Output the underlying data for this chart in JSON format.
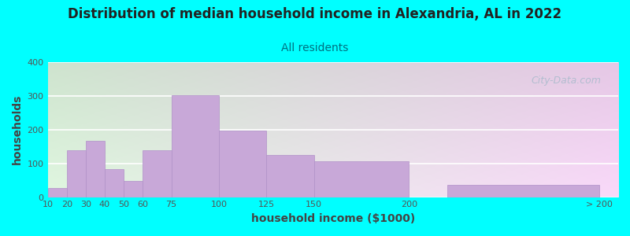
{
  "title": "Distribution of median household income in Alexandria, AL in 2022",
  "subtitle": "All residents",
  "xlabel": "household income ($1000)",
  "ylabel": "households",
  "background_color": "#00FFFF",
  "bar_color": "#c8a8d8",
  "bar_edge_color": "#b090c8",
  "values": [
    28,
    0,
    140,
    168,
    82,
    48,
    140,
    302,
    197,
    125,
    107,
    37
  ],
  "bar_lefts": [
    10,
    20,
    20,
    30,
    40,
    50,
    60,
    75,
    100,
    125,
    150,
    220
  ],
  "bar_widths": [
    10,
    0,
    10,
    10,
    10,
    10,
    15,
    25,
    25,
    25,
    50,
    80
  ],
  "tick_positions": [
    10,
    20,
    30,
    40,
    50,
    60,
    75,
    100,
    125,
    150,
    200,
    300
  ],
  "tick_labels": [
    "10",
    "20",
    "30",
    "40",
    "50",
    "60",
    "75",
    "100",
    "125",
    "150",
    "200",
    "> 200"
  ],
  "xlim": [
    10,
    310
  ],
  "ylim": [
    0,
    400
  ],
  "yticks": [
    0,
    100,
    200,
    300,
    400
  ],
  "title_fontsize": 12,
  "subtitle_fontsize": 10,
  "axis_label_fontsize": 10,
  "tick_fontsize": 8,
  "title_color": "#222222",
  "subtitle_color": "#007080",
  "axis_label_color": "#444444",
  "watermark_text": "City-Data.com",
  "watermark_color": "#aabbcc"
}
